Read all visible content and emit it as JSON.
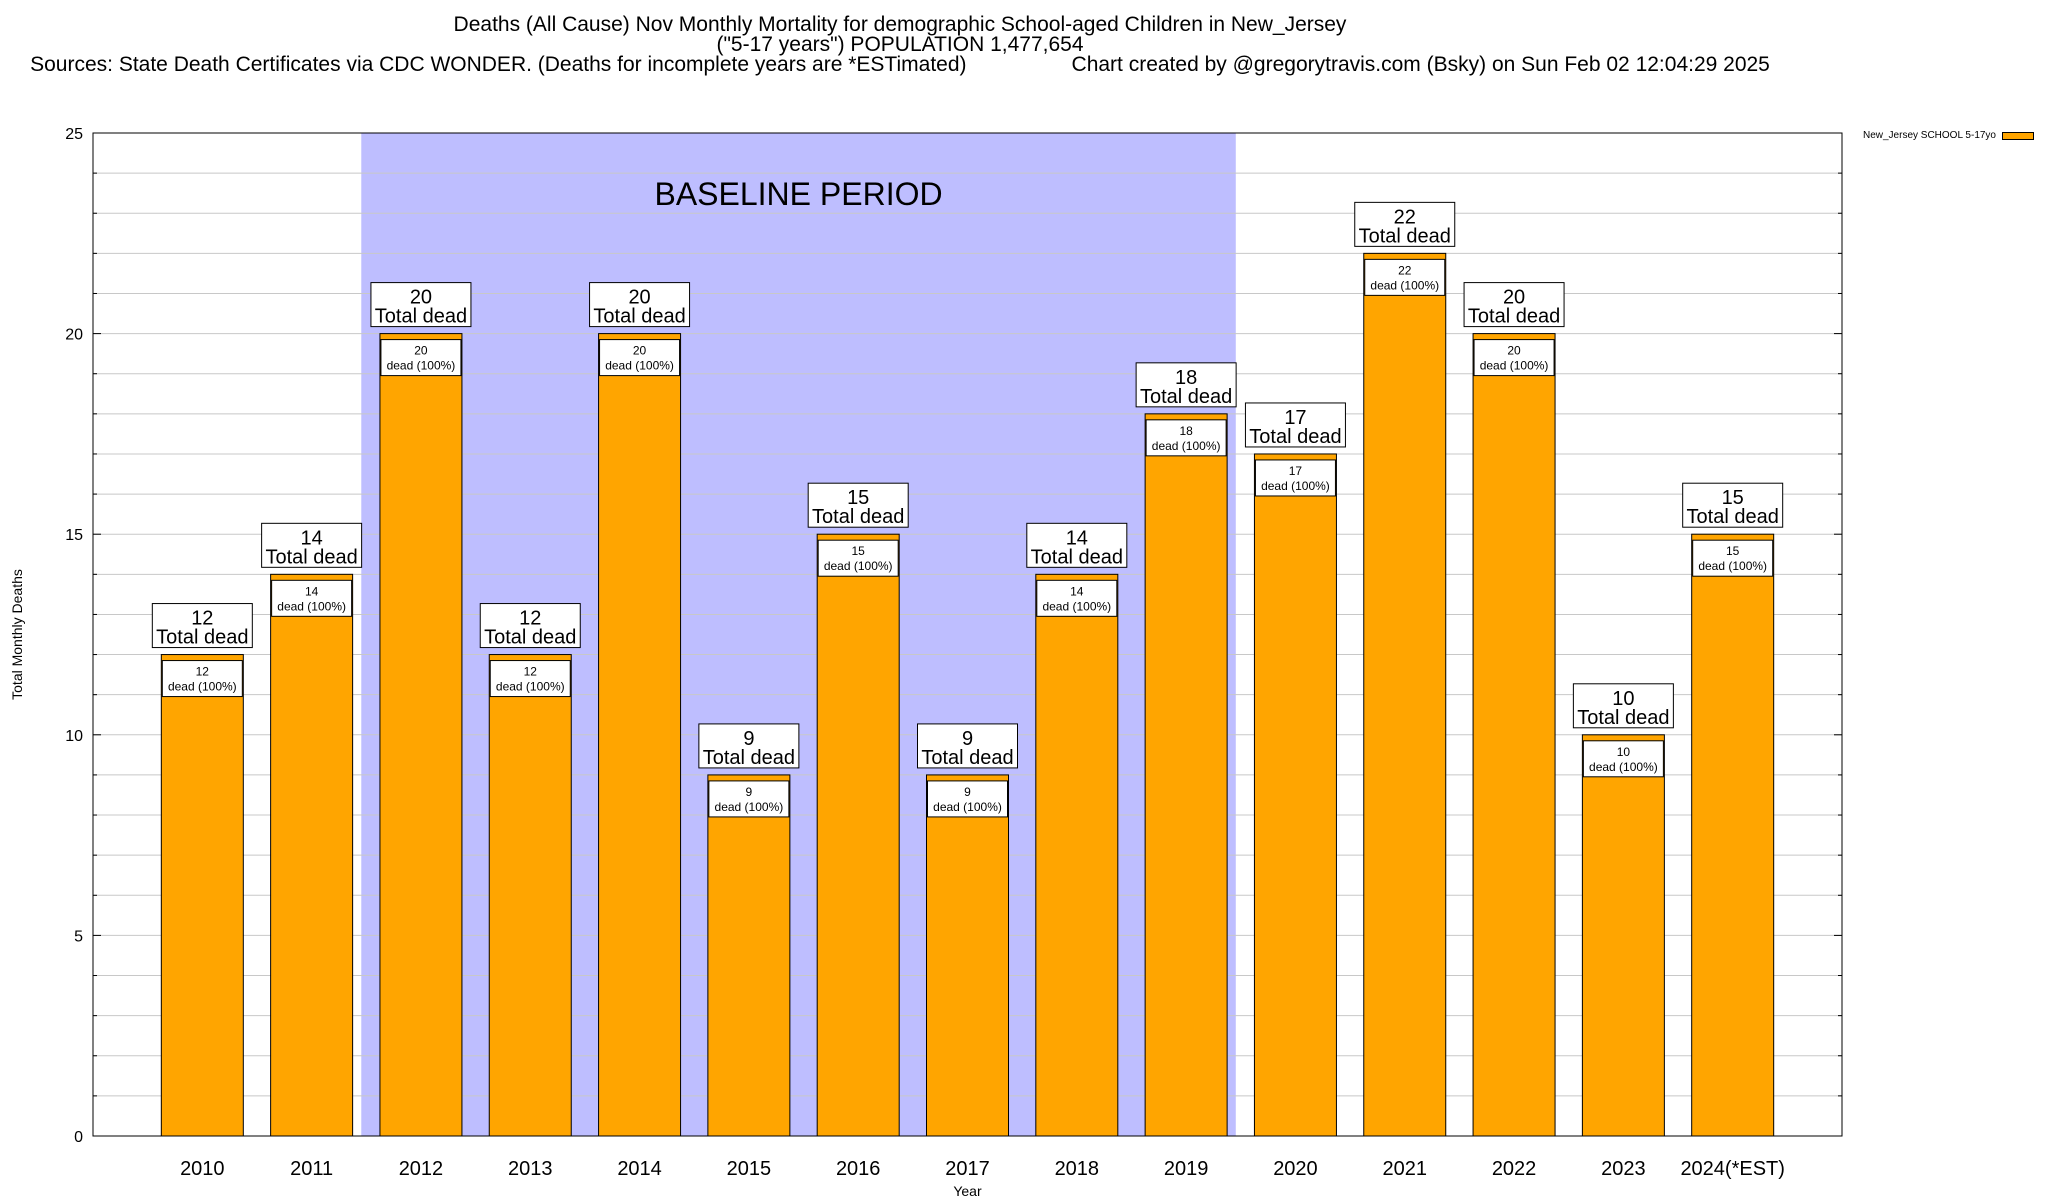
{
  "title": {
    "line1": "Deaths (All Cause) Nov Monthly Mortality for demographic School-aged Children in New_Jersey",
    "line2": "(\"5-17 years\") POPULATION 1,477,654",
    "line3": "Sources: State Death Certificates via CDC WONDER. (Deaths for incomplete years are *ESTimated)                  Chart created by @gregorytravis.com (Bsky) on Sun Feb 02 12:04:29 2025"
  },
  "legend": {
    "label": "New_Jersey SCHOOL 5-17yo"
  },
  "colors": {
    "bar": "#FFA500",
    "baseline": "#BEBEFF"
  },
  "chart_data": {
    "type": "bar",
    "categories": [
      "2010",
      "2011",
      "2012",
      "2013",
      "2014",
      "2015",
      "2016",
      "2017",
      "2018",
      "2019",
      "2020",
      "2021",
      "2022",
      "2023",
      "2024(*EST)"
    ],
    "series": [
      {
        "name": "New_Jersey SCHOOL 5-17yo",
        "values": [
          12,
          14,
          20,
          12,
          20,
          9,
          15,
          9,
          14,
          18,
          17,
          22,
          20,
          10,
          15
        ]
      }
    ],
    "total_label": "Total dead",
    "inner_label_suffix": "dead (100%)",
    "xlabel": "Year",
    "ylabel": "Total Monthly Deaths",
    "ylim": [
      0,
      25
    ],
    "yticks": [
      0,
      5,
      10,
      15,
      20,
      25
    ],
    "baseline": {
      "label": "BASELINE PERIOD",
      "from": "2012",
      "to": "2019"
    },
    "grid": true,
    "legend_position": "top-right"
  }
}
